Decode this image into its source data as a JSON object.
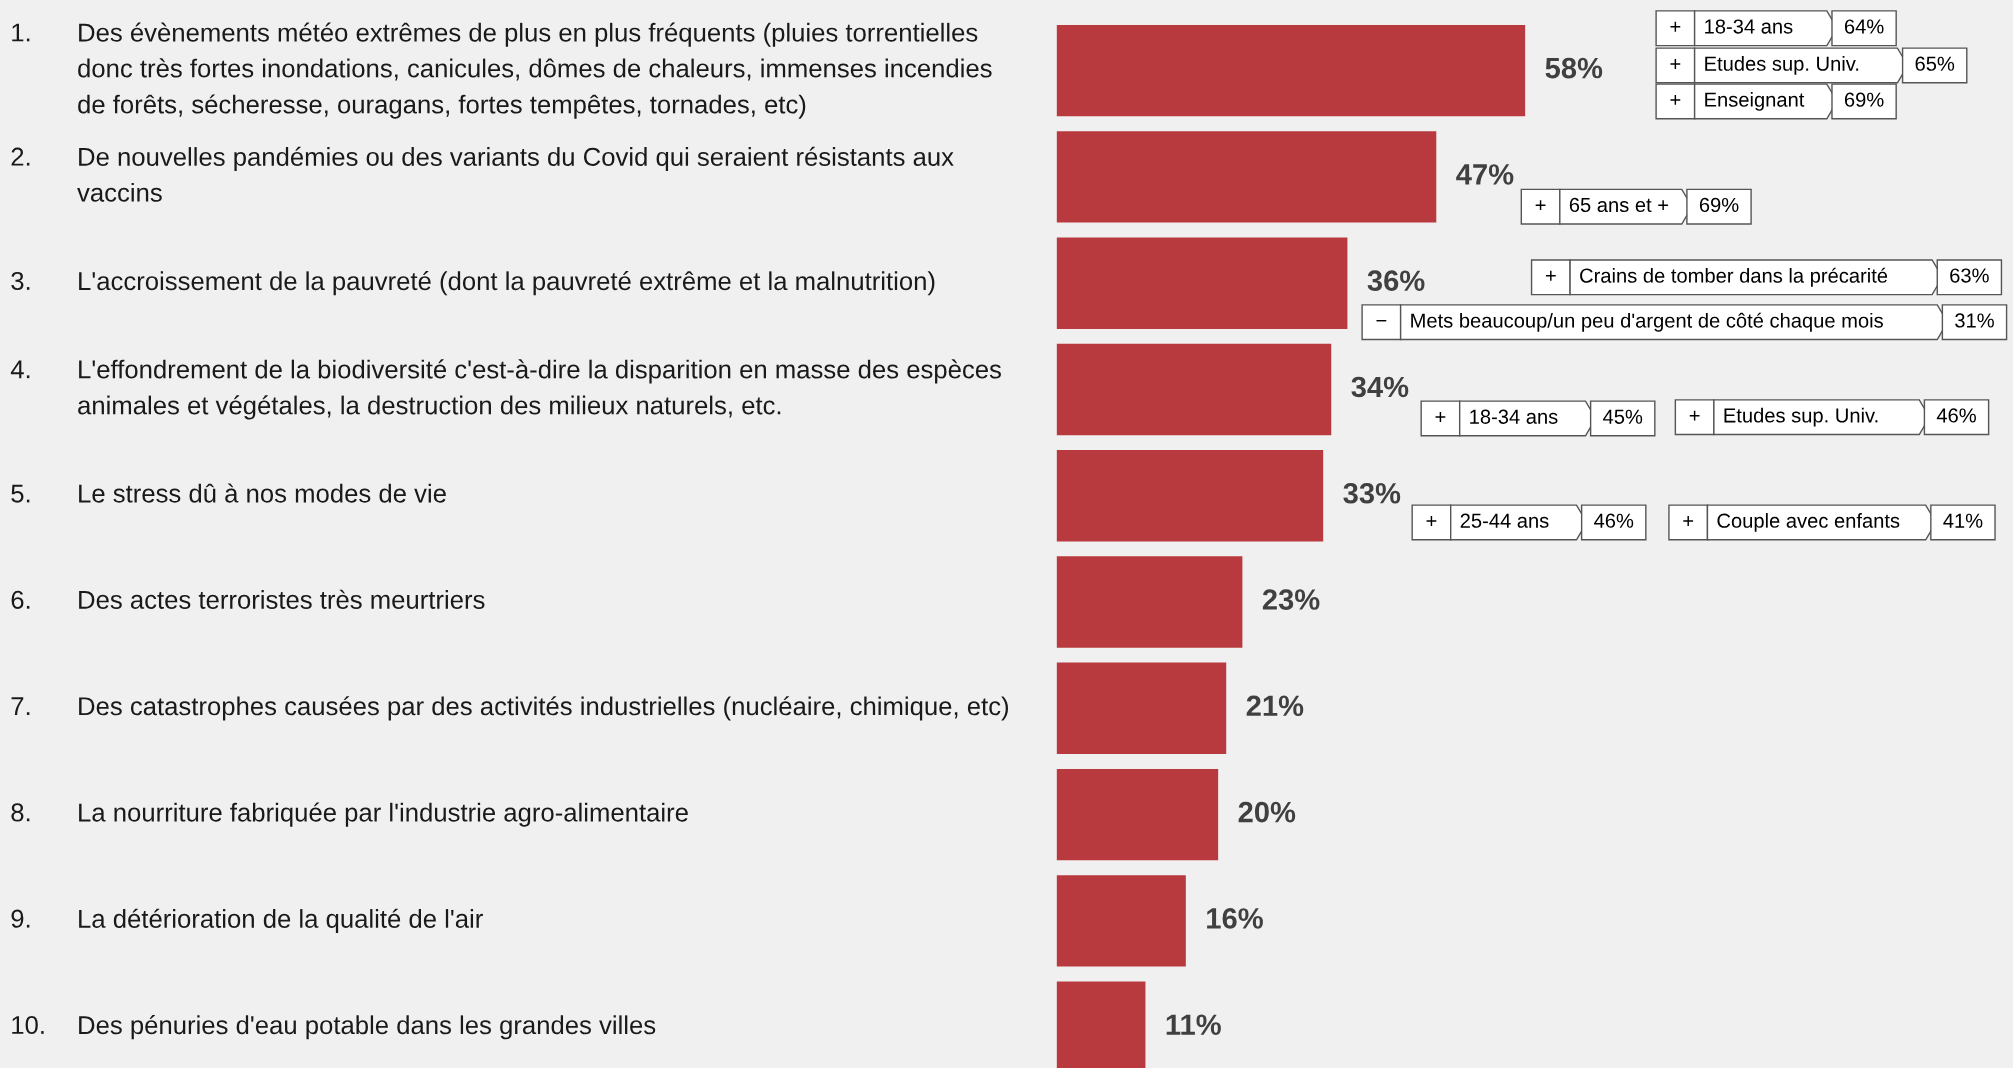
{
  "chart_data": {
    "type": "bar",
    "orientation": "horizontal",
    "categories": [
      "1. Des évènements météo extrêmes de plus en plus fréquents (pluies torrentielles\ndonc très fortes inondations, canicules, dômes de chaleurs, immenses incendies\nde forêts, sécheresse, ouragans, fortes tempêtes, tornades, etc)",
      "2. De nouvelles pandémies ou des variants du Covid qui seraient résistants aux\nvaccins",
      "3. L'accroissement de la pauvreté (dont la pauvreté extrême et la malnutrition)",
      "4. L'effondrement de la biodiversité c'est-à-dire la disparition en masse des espèces\nanimales et végétales, la destruction des milieux naturels, etc.",
      "5. Le stress dû à nos modes de vie",
      "6. Des actes terroristes très meurtriers",
      "7. Des catastrophes causées par des activités industrielles (nucléaire, chimique, etc)",
      "8. La nourriture fabriquée par l'industrie agro-alimentaire",
      "9. La détérioration de la qualité de l'air",
      "10. Des pénuries d'eau potable dans les grandes villes"
    ],
    "values": [
      58,
      47,
      36,
      34,
      33,
      23,
      21,
      20,
      16,
      11
    ],
    "value_labels": [
      "58%",
      "47%",
      "36%",
      "34%",
      "33%",
      "23%",
      "21%",
      "20%",
      "16%",
      "11%"
    ],
    "color": "#b93a3e",
    "annotations": [
      "+",
      "18-34 ans",
      "64%",
      "+",
      "Etudes sup. Univ.",
      "65%",
      "+",
      "Enseignant",
      "69%",
      "+",
      "65 ans et +",
      "69%",
      "+",
      "Crains de tomber dans la précarité",
      "63%",
      "−",
      "Mets beaucoup/un peu d'argent de côté chaque mois",
      "31%",
      "+",
      "18-34 ans",
      "45%",
      "+",
      "Etudes sup. Univ.",
      "46%",
      "+",
      "25-44 ans",
      "46%",
      "+",
      "Couple avec enfants",
      "41%"
    ]
  }
}
